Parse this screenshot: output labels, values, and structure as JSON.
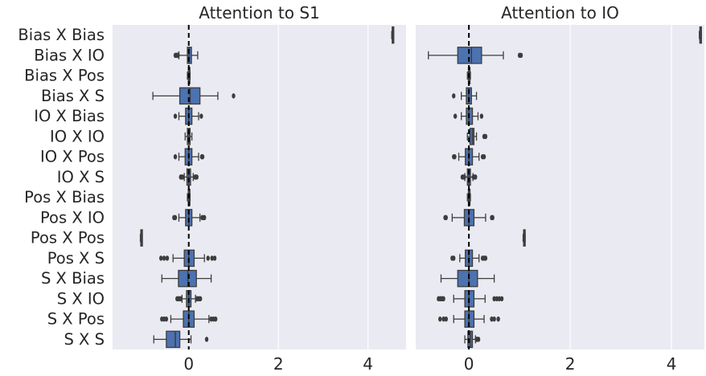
{
  "chart_data": {
    "type": "box",
    "categories": [
      "Bias X Bias",
      "Bias X IO",
      "Bias X Pos",
      "Bias X S",
      "IO X Bias",
      "IO X IO",
      "IO X Pos",
      "IO X S",
      "Pos X Bias",
      "Pos X IO",
      "Pos X Pos",
      "Pos X S",
      "S X Bias",
      "S X IO",
      "S X Pos",
      "S X S"
    ],
    "reference_line": {
      "x": 0,
      "style": "dashed",
      "color": "#000000"
    },
    "box_color": "#4c72b0",
    "background": "#eaeaf2",
    "grid": true,
    "panels": [
      {
        "title": "Attention to S1",
        "xticks": [
          0,
          2,
          4
        ],
        "xlim": [
          -1.7,
          4.85
        ],
        "boxes": [
          {
            "whislo": 4.53,
            "q1": 4.54,
            "med": 4.55,
            "q3": 4.56,
            "whishi": 4.57,
            "fliers": []
          },
          {
            "whislo": -0.22,
            "q1": -0.03,
            "med": 0.01,
            "q3": 0.06,
            "whishi": 0.2,
            "fliers": [
              -0.3,
              -0.28,
              -0.26,
              -0.25,
              -0.24
            ]
          },
          {
            "whislo": -0.03,
            "q1": -0.01,
            "med": 0.0,
            "q3": 0.01,
            "whishi": 0.03,
            "fliers": []
          },
          {
            "whislo": -0.8,
            "q1": -0.2,
            "med": 0.03,
            "q3": 0.25,
            "whishi": 0.65,
            "fliers": [
              1.0
            ]
          },
          {
            "whislo": -0.22,
            "q1": -0.07,
            "med": 0.0,
            "q3": 0.07,
            "whishi": 0.22,
            "fliers": [
              -0.3,
              0.28
            ]
          },
          {
            "whislo": -0.08,
            "q1": -0.03,
            "med": 0.0,
            "q3": 0.03,
            "whishi": 0.07,
            "fliers": []
          },
          {
            "whislo": -0.22,
            "q1": -0.08,
            "med": 0.0,
            "q3": 0.07,
            "whishi": 0.22,
            "fliers": [
              -0.3,
              0.29,
              0.31
            ]
          },
          {
            "whislo": -0.1,
            "q1": -0.04,
            "med": 0.0,
            "q3": 0.04,
            "whishi": 0.1,
            "fliers": [
              -0.18,
              -0.16,
              -0.14,
              0.14,
              0.16,
              0.18
            ]
          },
          {
            "whislo": -0.03,
            "q1": -0.01,
            "med": 0.0,
            "q3": 0.01,
            "whishi": 0.03,
            "fliers": []
          },
          {
            "whislo": -0.22,
            "q1": -0.07,
            "med": 0.0,
            "q3": 0.07,
            "whishi": 0.25,
            "fliers": [
              -0.33,
              -0.3,
              0.3,
              0.33,
              0.35
            ]
          },
          {
            "whislo": -1.08,
            "q1": -1.07,
            "med": -1.06,
            "q3": -1.05,
            "whishi": -1.04,
            "fliers": []
          },
          {
            "whislo": -0.35,
            "q1": -0.1,
            "med": 0.0,
            "q3": 0.12,
            "whishi": 0.35,
            "fliers": [
              -0.62,
              -0.55,
              -0.48,
              0.43,
              0.52,
              0.58
            ]
          },
          {
            "whislo": -0.6,
            "q1": -0.23,
            "med": -0.02,
            "q3": 0.17,
            "whishi": 0.5,
            "fliers": []
          },
          {
            "whislo": -0.15,
            "q1": -0.05,
            "med": 0.0,
            "q3": 0.05,
            "whishi": 0.15,
            "fliers": [
              -0.26,
              -0.23,
              -0.2,
              -0.18,
              0.18,
              0.2,
              0.23,
              0.26
            ]
          },
          {
            "whislo": -0.4,
            "q1": -0.12,
            "med": 0.0,
            "q3": 0.12,
            "whishi": 0.45,
            "fliers": [
              -0.6,
              -0.55,
              -0.5,
              0.5,
              0.55,
              0.6
            ]
          },
          {
            "whislo": -0.78,
            "q1": -0.5,
            "med": -0.3,
            "q3": -0.2,
            "whishi": 0.05,
            "fliers": [
              0.4
            ]
          }
        ]
      },
      {
        "title": "Attention to IO",
        "xticks": [
          0,
          2,
          4
        ],
        "xlim": [
          -1.05,
          4.65
        ],
        "boxes": [
          {
            "whislo": 4.55,
            "q1": 4.56,
            "med": 4.57,
            "q3": 4.58,
            "whishi": 4.59,
            "fliers": []
          },
          {
            "whislo": -0.8,
            "q1": -0.22,
            "med": 0.05,
            "q3": 0.25,
            "whishi": 0.68,
            "fliers": [
              1.0,
              1.03
            ]
          },
          {
            "whislo": -0.03,
            "q1": -0.01,
            "med": 0.0,
            "q3": 0.01,
            "whishi": 0.03,
            "fliers": []
          },
          {
            "whislo": -0.15,
            "q1": -0.05,
            "med": 0.0,
            "q3": 0.05,
            "whishi": 0.15,
            "fliers": [
              -0.3
            ]
          },
          {
            "whislo": -0.15,
            "q1": -0.05,
            "med": 0.0,
            "q3": 0.07,
            "whishi": 0.18,
            "fliers": [
              -0.27,
              0.25
            ]
          },
          {
            "whislo": -0.03,
            "q1": 0.02,
            "med": 0.07,
            "q3": 0.1,
            "whishi": 0.15,
            "fliers": [
              0.3,
              0.33
            ]
          },
          {
            "whislo": -0.2,
            "q1": -0.07,
            "med": 0.0,
            "q3": 0.07,
            "whishi": 0.2,
            "fliers": [
              -0.3,
              -0.28,
              0.27,
              0.3
            ]
          },
          {
            "whislo": -0.08,
            "q1": -0.03,
            "med": 0.0,
            "q3": 0.03,
            "whishi": 0.08,
            "fliers": [
              -0.13,
              -0.11,
              -0.09,
              0.09,
              0.11,
              0.13
            ]
          },
          {
            "whislo": -0.03,
            "q1": -0.01,
            "med": 0.0,
            "q3": 0.01,
            "whishi": 0.03,
            "fliers": []
          },
          {
            "whislo": -0.33,
            "q1": -0.09,
            "med": 0.0,
            "q3": 0.1,
            "whishi": 0.33,
            "fliers": [
              -0.47,
              -0.45,
              0.45,
              0.47
            ]
          },
          {
            "whislo": 1.07,
            "q1": 1.08,
            "med": 1.09,
            "q3": 1.1,
            "whishi": 1.11,
            "fliers": []
          },
          {
            "whislo": -0.18,
            "q1": -0.07,
            "med": 0.0,
            "q3": 0.07,
            "whishi": 0.2,
            "fliers": [
              -0.33,
              -0.3,
              0.27,
              0.3,
              0.33
            ]
          },
          {
            "whislo": -0.55,
            "q1": -0.22,
            "med": 0.0,
            "q3": 0.17,
            "whishi": 0.5,
            "fliers": []
          },
          {
            "whislo": -0.3,
            "q1": -0.08,
            "med": 0.0,
            "q3": 0.1,
            "whishi": 0.32,
            "fliers": [
              -0.6,
              -0.57,
              -0.55,
              -0.52,
              -0.5,
              0.5,
              0.55,
              0.6,
              0.65
            ]
          },
          {
            "whislo": -0.3,
            "q1": -0.08,
            "med": 0.0,
            "q3": 0.1,
            "whishi": 0.3,
            "fliers": [
              -0.57,
              -0.5,
              -0.45,
              0.45,
              0.5,
              0.58
            ]
          },
          {
            "whislo": -0.08,
            "q1": -0.02,
            "med": 0.03,
            "q3": 0.07,
            "whishi": 0.13,
            "fliers": [
              0.15,
              0.17,
              0.19
            ]
          }
        ]
      }
    ]
  }
}
